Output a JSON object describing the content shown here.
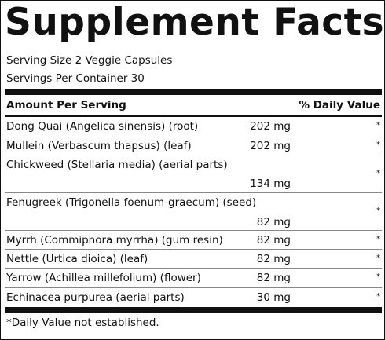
{
  "title": "Supplement Facts",
  "serving_size": "Serving Size 2 Veggie Capsules",
  "servings_per_container": "Servings Per Container 30",
  "header": {
    "amount": "Amount Per Serving",
    "daily_value": "% Daily Value"
  },
  "ingredients": [
    {
      "name": "Dong Quai (Angelica sinensis) (root)",
      "amount": "202 mg",
      "dv": "*"
    },
    {
      "name": "Mullein (Verbascum thapsus) (leaf)",
      "amount": "202 mg",
      "dv": "*"
    },
    {
      "name": "Chickweed (Stellaria media) (aerial parts)",
      "amount": "134 mg",
      "dv": "*"
    },
    {
      "name": "Fenugreek (Trigonella foenum-graecum) (seed)",
      "amount": "82 mg",
      "dv": "*"
    },
    {
      "name": "Myrrh (Commiphora myrrha) (gum resin)",
      "amount": "82 mg",
      "dv": "*"
    },
    {
      "name": "Nettle (Urtica dioica) (leaf)",
      "amount": "82 mg",
      "dv": "*"
    },
    {
      "name": "Yarrow (Achillea millefolium) (flower)",
      "amount": "82 mg",
      "dv": "*"
    },
    {
      "name": "Echinacea purpurea (aerial parts)",
      "amount": "30 mg",
      "dv": "*"
    }
  ],
  "footnote": "*Daily Value not established."
}
